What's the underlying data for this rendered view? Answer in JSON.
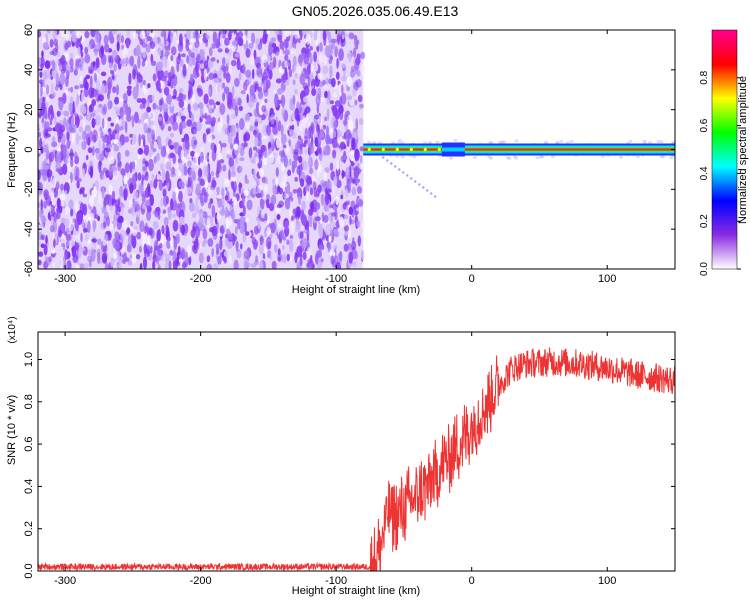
{
  "title": "GN05.2026.035.06.49.E13",
  "chart_data": [
    {
      "type": "heatmap",
      "name": "spectrogram",
      "xlabel": "Height of straight line (km)",
      "ylabel": "Frequency (Hz)",
      "xlim": [
        -320,
        150
      ],
      "ylim": [
        -60,
        60
      ],
      "xticks": [
        "-300",
        "-200",
        "-100",
        "0",
        "100"
      ],
      "xtick_values": [
        -300,
        -200,
        -100,
        0,
        100
      ],
      "yticks": [
        "-60",
        "-40",
        "-20",
        "0",
        "20",
        "40",
        "60"
      ],
      "ytick_values": [
        -60,
        -40,
        -20,
        0,
        20,
        40,
        60
      ],
      "noise_region_x": [
        -320,
        -80
      ],
      "signal_start_x": -80,
      "signal_frequency": 0,
      "signal_notch_x": [
        -22,
        -5
      ],
      "colorbar": {
        "label": "Normalized spectral amplitude",
        "range": [
          0,
          1
        ],
        "ticks": [
          "0.0",
          "0.2",
          "0.4",
          "0.6",
          "0.8"
        ],
        "tick_values": [
          0,
          0.2,
          0.4,
          0.6,
          0.8
        ],
        "colors": [
          "#ffffff",
          "#8a2be2",
          "#0000ff",
          "#00ffff",
          "#00ff00",
          "#ffff00",
          "#ff0000",
          "#ff0090"
        ]
      }
    },
    {
      "type": "line",
      "name": "snr",
      "xlabel": "Height of straight line (km)",
      "ylabel": "SNR (10 * v/v)",
      "scale_label": "(x10⁴)",
      "xlim": [
        -320,
        150
      ],
      "ylim": [
        0,
        1.13
      ],
      "xticks": [
        "-300",
        "-200",
        "-100",
        "0",
        "100"
      ],
      "xtick_values": [
        -300,
        -200,
        -100,
        0,
        100
      ],
      "yticks": [
        "0.0",
        "0.2",
        "0.4",
        "0.6",
        "0.8",
        "1.0"
      ],
      "ytick_values": [
        0,
        0.2,
        0.4,
        0.6,
        0.8,
        1.0
      ],
      "color": "#ee3333",
      "x": [
        -320,
        -75,
        -68,
        -62,
        -55,
        -45,
        -30,
        -15,
        0,
        10,
        20,
        30,
        40,
        60,
        80,
        100,
        120,
        140,
        150
      ],
      "y": [
        0.02,
        0.02,
        0.1,
        0.28,
        0.25,
        0.33,
        0.42,
        0.55,
        0.68,
        0.78,
        0.88,
        0.96,
        0.98,
        0.99,
        0.98,
        0.96,
        0.93,
        0.91,
        0.9
      ]
    }
  ]
}
